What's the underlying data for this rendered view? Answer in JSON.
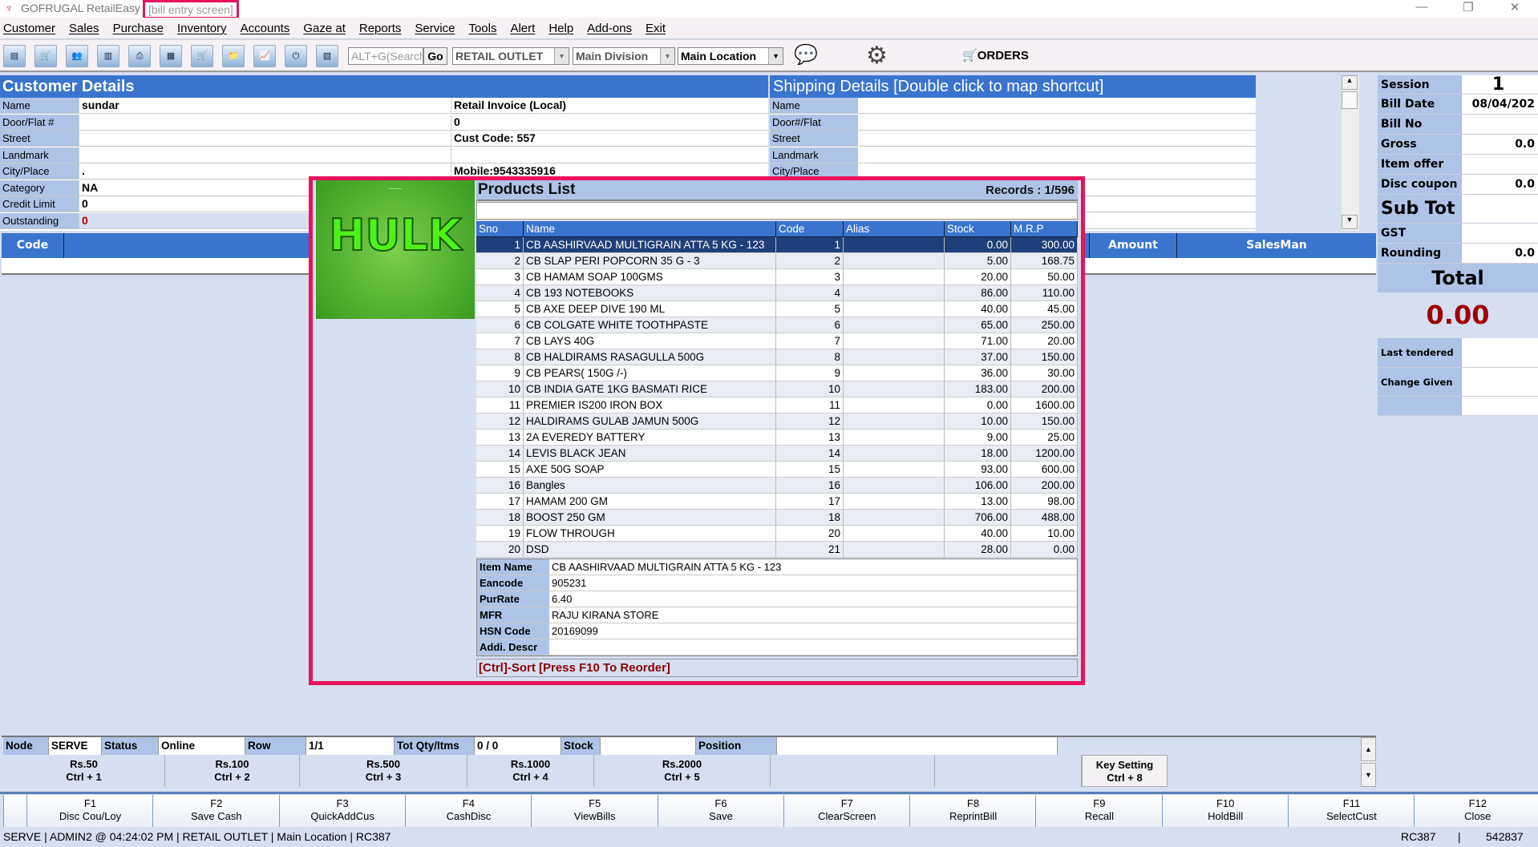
{
  "window": {
    "app_title": "GOFRUGAL RetailEasy",
    "screen_label": "[bill entry screen]",
    "minimize": "—",
    "restore": "❐",
    "close": "✕"
  },
  "menu": [
    "Customer",
    "Sales",
    "Purchase",
    "Inventory",
    "Accounts",
    "Gaze at",
    "Reports",
    "Service",
    "Tools",
    "Alert",
    "Help",
    "Add-ons",
    "Exit"
  ],
  "toolbar": {
    "icons": [
      "bill-icon",
      "cart-bill-icon",
      "customer-icon",
      "barcode-icon",
      "print-icon",
      "document-icon",
      "cart-doc-icon",
      "folder-icon",
      "chart-icon",
      "exit-icon",
      "report-icon"
    ],
    "exit_label": "EXIT",
    "search_placeholder": "ALT+G(Search",
    "go_label": "Go",
    "outlet": "RETAIL OUTLET",
    "division": "Main Division",
    "location": "Main Location",
    "orders_label": "ORDERS"
  },
  "customer": {
    "title": "Customer Details",
    "fields": [
      {
        "label": "Name",
        "value": "sundar",
        "extra": "Retail Invoice (Local)"
      },
      {
        "label": "Door/Flat #",
        "value": "",
        "extra": "0"
      },
      {
        "label": "Street",
        "value": "",
        "extra": "Cust Code: 557"
      },
      {
        "label": "Landmark",
        "value": "",
        "extra": ""
      },
      {
        "label": "City/Place",
        "value": ".",
        "extra": "Mobile:9543335916"
      },
      {
        "label": "Category",
        "value": "NA",
        "extra": ""
      },
      {
        "label": "Credit Limit",
        "value": "0",
        "extra": ""
      },
      {
        "label": "Outstanding",
        "value": "0",
        "extra": ""
      }
    ]
  },
  "shipping": {
    "title": "Shipping Details   [Double click to map shortcut]",
    "fields": [
      "Name",
      "Door#/Flat",
      "Street",
      "Landmark",
      "City/Place"
    ]
  },
  "grid": {
    "columns": {
      "code": "Code",
      "amount": "Amount",
      "salesman": "SalesMan"
    }
  },
  "summary": {
    "session_label": "Session",
    "session": "1",
    "bill_date_label": "Bill Date",
    "bill_date": "08/04/202",
    "bill_no_label": "Bill No",
    "bill_no": "",
    "gross_label": "Gross",
    "gross": "0.0",
    "item_offer_label": "Item offer",
    "item_offer": "",
    "disc_coupon_label": "Disc coupon",
    "disc_coupon": "0.0",
    "sub_tot_label": "Sub Tot",
    "sub_tot": "",
    "gst_label": "GST",
    "gst": "",
    "rounding_label": "Rounding",
    "rounding": "0.0",
    "total_label": "Total",
    "total": "0.00",
    "last_tendered_label": "Last tendered",
    "change_given_label": "Change Given"
  },
  "products": {
    "title": "Products List",
    "records": "Records : 1/596",
    "search_value": "",
    "logo_text": "HULK",
    "columns": [
      "Sno",
      "Name",
      "Code",
      "Alias",
      "Stock",
      "M.R.P"
    ],
    "rows": [
      [
        "1",
        "CB AASHIRVAAD MULTIGRAIN ATTA 5 KG - 123",
        "1",
        "",
        "0.00",
        "300.00"
      ],
      [
        "2",
        "CB SLAP PERI POPCORN 35 G - 3",
        "2",
        "",
        "5.00",
        "168.75"
      ],
      [
        "3",
        "CB HAMAM SOAP 100GMS",
        "3",
        "",
        "20.00",
        "50.00"
      ],
      [
        "4",
        "CB 193 NOTEBOOKS",
        "4",
        "",
        "86.00",
        "110.00"
      ],
      [
        "5",
        "CB AXE DEEP DIVE 190 ML",
        "5",
        "",
        "40.00",
        "45.00"
      ],
      [
        "6",
        "CB COLGATE WHITE TOOTHPASTE",
        "6",
        "",
        "65.00",
        "250.00"
      ],
      [
        "7",
        "CB LAYS 40G",
        "7",
        "",
        "71.00",
        "20.00"
      ],
      [
        "8",
        "CB HALDIRAMS RASAGULLA 500G",
        "8",
        "",
        "37.00",
        "150.00"
      ],
      [
        "9",
        "CB PEARS( 150G /-)",
        "9",
        "",
        "36.00",
        "30.00"
      ],
      [
        "10",
        "CB INDIA GATE 1KG BASMATI RICE",
        "10",
        "",
        "183.00",
        "200.00"
      ],
      [
        "11",
        "PREMIER IS200 IRON BOX",
        "11",
        "",
        "0.00",
        "1600.00"
      ],
      [
        "12",
        "HALDIRAMS GULAB JAMUN 500G",
        "12",
        "",
        "10.00",
        "150.00"
      ],
      [
        "13",
        "2A EVEREDY BATTERY",
        "13",
        "",
        "9.00",
        "25.00"
      ],
      [
        "14",
        "LEVIS BLACK JEAN",
        "14",
        "",
        "18.00",
        "1200.00"
      ],
      [
        "15",
        "AXE 50G SOAP",
        "15",
        "",
        "93.00",
        "600.00"
      ],
      [
        "16",
        "Bangles",
        "16",
        "",
        "106.00",
        "200.00"
      ],
      [
        "17",
        "HAMAM 200 GM",
        "17",
        "",
        "13.00",
        "98.00"
      ],
      [
        "18",
        "BOOST 250 GM",
        "18",
        "",
        "706.00",
        "488.00"
      ],
      [
        "19",
        "FLOW THROUGH",
        "20",
        "",
        "40.00",
        "10.00"
      ],
      [
        "20",
        "DSD",
        "21",
        "",
        "28.00",
        "0.00"
      ]
    ],
    "selected_index": 0,
    "details": [
      [
        "Item Name",
        "CB AASHIRVAAD MULTIGRAIN ATTA 5 KG - 123"
      ],
      [
        "Eancode",
        "905231"
      ],
      [
        "PurRate",
        "6.40"
      ],
      [
        "MFR",
        "RAJU KIRANA STORE"
      ],
      [
        "HSN Code",
        "20169099"
      ],
      [
        "Addi. Descr",
        ""
      ]
    ],
    "hint": "[Ctrl]-Sort [Press F10 To Reorder]"
  },
  "status_row": {
    "node_label": "Node",
    "node": "SERVE",
    "status_label": "Status",
    "status": "Online",
    "row_label": "Row",
    "row": "1/1",
    "totqty_label": "Tot Qty/Itms",
    "totqty": "0 / 0",
    "stock_label": "Stock",
    "stock": "",
    "position_label": "Position",
    "position": ""
  },
  "shortcuts": [
    [
      "Rs.50",
      "Ctrl + 1"
    ],
    [
      "Rs.100",
      "Ctrl + 2"
    ],
    [
      "Rs.500",
      "Ctrl + 3"
    ],
    [
      "Rs.1000",
      "Ctrl + 4"
    ],
    [
      "Rs.2000",
      "Ctrl + 5"
    ],
    [
      "",
      ""
    ],
    [
      "",
      ""
    ],
    [
      "Key Setting",
      "Ctrl + 8"
    ]
  ],
  "fkeys": [
    [
      "F1",
      "Disc Cou/Loy"
    ],
    [
      "F2",
      "Save Cash"
    ],
    [
      "F3",
      "QuickAddCus"
    ],
    [
      "F4",
      "CashDisc"
    ],
    [
      "F5",
      "ViewBills"
    ],
    [
      "F6",
      "Save"
    ],
    [
      "F7",
      "ClearScreen"
    ],
    [
      "F8",
      "ReprintBill"
    ],
    [
      "F9",
      "Recall"
    ],
    [
      "F10",
      "HoldBill"
    ],
    [
      "F11",
      "SelectCust"
    ],
    [
      "F12",
      "Close"
    ]
  ],
  "footer": {
    "left": "SERVE  | ADMIN2  @ 04:24:02 PM   | RETAIL OUTLET   | Main Location  | RC387",
    "right1": "RC387",
    "right2": "542837"
  },
  "colors": {
    "header_blue": "#3a74cf",
    "label_blue": "#aec3e6",
    "selected_row": "#1f3f7a",
    "total_red": "#a00000",
    "highlight": "#e8135a"
  }
}
